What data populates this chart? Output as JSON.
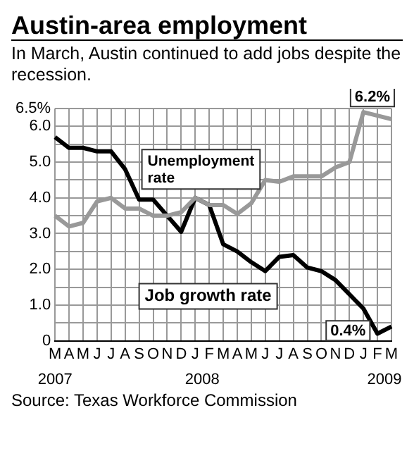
{
  "chart_data": {
    "type": "line",
    "title": "Austin-area employment",
    "subtitle": "In March, Austin continued to add jobs despite the recession.",
    "categories": [
      "M",
      "A",
      "M",
      "J",
      "J",
      "A",
      "S",
      "O",
      "N",
      "D",
      "J",
      "F",
      "M",
      "A",
      "M",
      "J",
      "J",
      "A",
      "S",
      "O",
      "N",
      "D",
      "J",
      "F",
      "M"
    ],
    "series": [
      {
        "name": "Unemployment rate",
        "color": "#999999",
        "values": [
          3.5,
          3.2,
          3.3,
          3.9,
          4.0,
          3.7,
          3.7,
          3.5,
          3.5,
          3.6,
          4.0,
          3.8,
          3.8,
          3.55,
          3.85,
          4.5,
          4.45,
          4.6,
          4.6,
          4.6,
          4.85,
          5.0,
          6.4,
          6.3,
          6.2
        ],
        "value_labels": [
          null,
          null,
          null,
          null,
          null,
          null,
          null,
          null,
          null,
          null,
          null,
          null,
          null,
          null,
          null,
          null,
          null,
          null,
          null,
          null,
          null,
          null,
          null,
          null,
          "6.2%"
        ]
      },
      {
        "name": "Job growth rate",
        "color": "#000000",
        "values": [
          5.7,
          5.4,
          5.4,
          5.3,
          5.3,
          4.8,
          3.95,
          3.95,
          3.5,
          3.05,
          4.0,
          3.8,
          2.7,
          2.5,
          2.2,
          1.95,
          2.35,
          2.4,
          2.05,
          1.95,
          1.7,
          1.3,
          0.9,
          0.2,
          0.4
        ],
        "value_labels": [
          null,
          null,
          null,
          null,
          null,
          null,
          null,
          null,
          null,
          null,
          null,
          null,
          null,
          null,
          null,
          null,
          null,
          null,
          null,
          null,
          null,
          null,
          null,
          null,
          "0.4%"
        ]
      }
    ],
    "ylim": [
      0,
      6.5
    ],
    "yticks": [
      0,
      {
        "value": 0.5,
        "label": null
      },
      {
        "value": 1,
        "label": "1.0"
      },
      {
        "value": 1.5,
        "label": null
      },
      {
        "value": 2,
        "label": "2.0"
      },
      {
        "value": 2.5,
        "label": null
      },
      {
        "value": 3,
        "label": "3.0"
      },
      {
        "value": 3.5,
        "label": null
      },
      {
        "value": 4,
        "label": "4.0"
      },
      {
        "value": 4.5,
        "label": null
      },
      {
        "value": 5,
        "label": "5.0"
      },
      {
        "value": 5.5,
        "label": null
      },
      {
        "value": 6,
        "label": "6.0"
      },
      {
        "value": 6.5,
        "label": "6.5%"
      }
    ],
    "grid": true,
    "legend": false,
    "marker": "none",
    "line_style": "solid",
    "annotations": [
      "2007",
      "2008",
      "2009",
      "Source: Texas Workforce Commission"
    ]
  }
}
